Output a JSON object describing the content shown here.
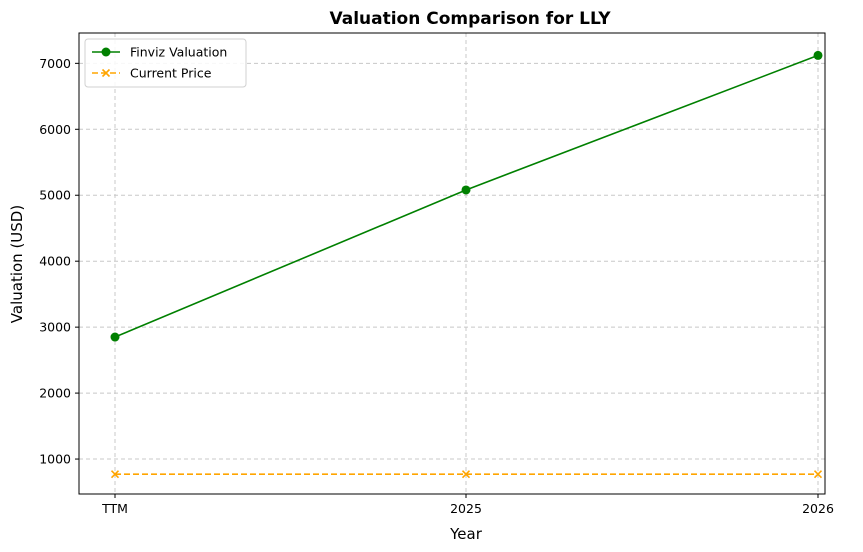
{
  "chart_data": {
    "type": "line",
    "title": "Valuation Comparison for LLY",
    "xlabel": "Year",
    "ylabel": "Valuation (USD)",
    "categories": [
      "TTM",
      "2025",
      "2026"
    ],
    "ylim": [
      470,
      7460
    ],
    "yticks": [
      1000,
      2000,
      3000,
      4000,
      5000,
      6000,
      7000
    ],
    "grid": true,
    "legend_position": "top-left",
    "series": [
      {
        "name": "Finviz Valuation",
        "values": [
          2850,
          5080,
          7120
        ],
        "color": "#008000",
        "marker": "circle",
        "linestyle": "solid"
      },
      {
        "name": "Current Price",
        "values": [
          770,
          770,
          770
        ],
        "color": "#FFA500",
        "marker": "x",
        "linestyle": "dashed"
      }
    ]
  }
}
